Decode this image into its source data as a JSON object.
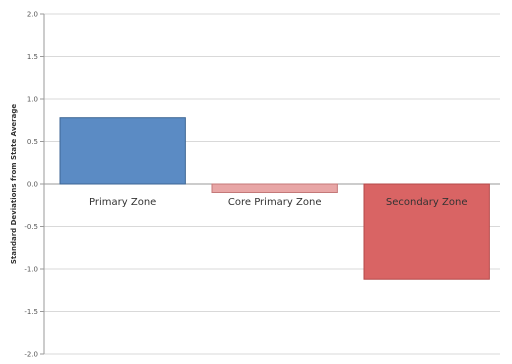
{
  "chart_data": {
    "type": "bar",
    "title": "",
    "xlabel": "",
    "ylabel": "Standard Deviations from State Average",
    "ylim": [
      -2.0,
      2.0
    ],
    "yticks": [
      "2.0",
      "1.5",
      "1.0",
      "0.5",
      "0.0",
      "-0.5",
      "-1.0",
      "-1.5",
      "-2.0"
    ],
    "grid": true,
    "legend": "none",
    "categories": [
      "Primary Zone",
      "Core Primary Zone",
      "Secondary Zone"
    ],
    "values": [
      0.78,
      -0.1,
      -1.12
    ],
    "colors": [
      "#5b8bc4",
      "#e8a6a6",
      "#d96464"
    ],
    "edge_colors": [
      "#3d6694",
      "#c47878",
      "#b44848"
    ]
  }
}
